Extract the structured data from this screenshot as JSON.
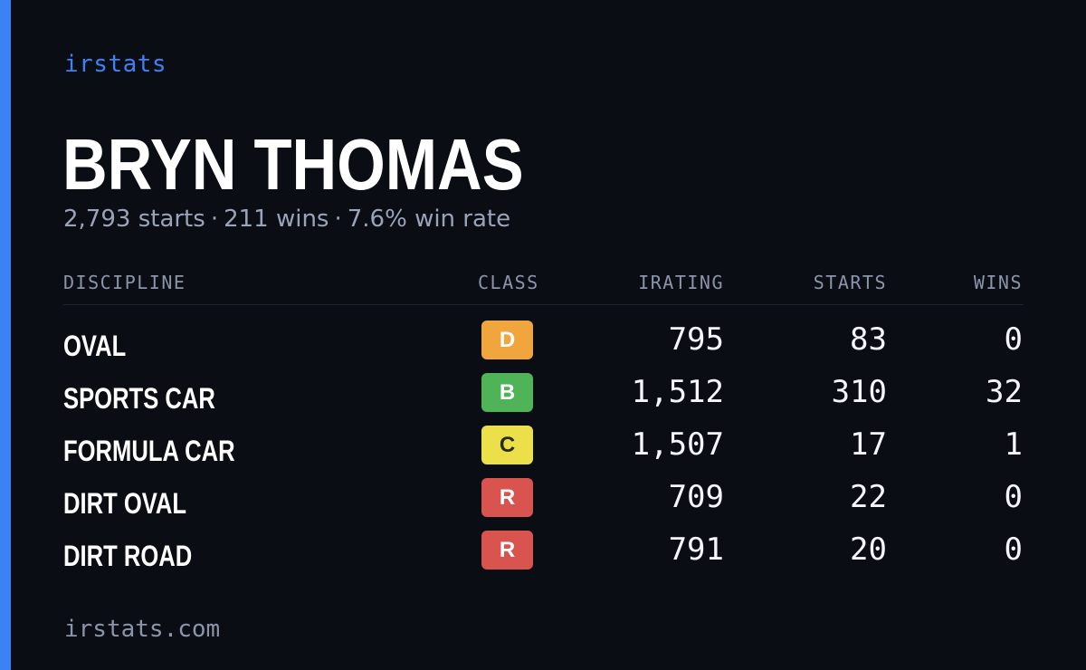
{
  "brand": "irstats",
  "colors": {
    "accent": "#3b82f6",
    "background": "#0a0d14",
    "class_D": "#f0a63d",
    "class_B": "#4fb458",
    "class_C": "#ece04a",
    "class_R": "#d9534f"
  },
  "driver": {
    "name": "BRYN THOMAS",
    "starts": "2,793 starts",
    "wins": "211 wins",
    "win_rate": "7.6% win rate",
    "separator": "·"
  },
  "table": {
    "headers": {
      "discipline": "DISCIPLINE",
      "class": "CLASS",
      "irating": "IRATING",
      "starts": "STARTS",
      "wins": "WINS"
    },
    "rows": [
      {
        "discipline": "OVAL",
        "class": "D",
        "irating": "795",
        "starts": "83",
        "wins": "0"
      },
      {
        "discipline": "SPORTS CAR",
        "class": "B",
        "irating": "1,512",
        "starts": "310",
        "wins": "32"
      },
      {
        "discipline": "FORMULA CAR",
        "class": "C",
        "irating": "1,507",
        "starts": "17",
        "wins": "1"
      },
      {
        "discipline": "DIRT OVAL",
        "class": "R",
        "irating": "709",
        "starts": "22",
        "wins": "0"
      },
      {
        "discipline": "DIRT ROAD",
        "class": "R",
        "irating": "791",
        "starts": "20",
        "wins": "0"
      }
    ]
  },
  "footer": "irstats.com"
}
